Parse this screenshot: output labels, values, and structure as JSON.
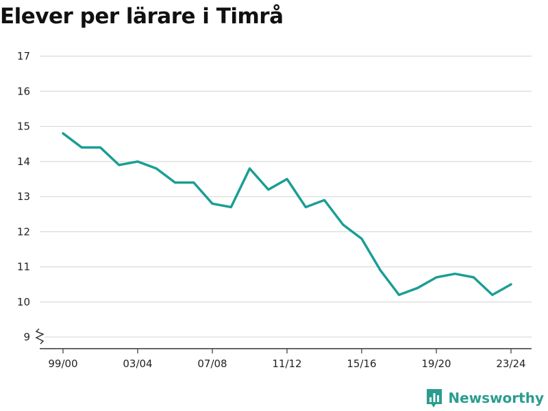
{
  "chart_data": {
    "type": "line",
    "title": "Elever per lärare i Timrå",
    "xlabel": "",
    "ylabel": "",
    "x": [
      "99/00",
      "00/01",
      "01/02",
      "02/03",
      "03/04",
      "04/05",
      "05/06",
      "06/07",
      "07/08",
      "08/09",
      "09/10",
      "10/11",
      "11/12",
      "12/13",
      "13/14",
      "14/15",
      "15/16",
      "16/17",
      "17/18",
      "18/19",
      "19/20",
      "20/21",
      "21/22",
      "22/23",
      "23/24"
    ],
    "x_tick_labels": [
      "99/00",
      "03/04",
      "07/08",
      "11/12",
      "15/16",
      "19/20",
      "23/24"
    ],
    "series": [
      {
        "values": [
          14.8,
          14.4,
          14.4,
          13.9,
          14.0,
          13.8,
          13.4,
          13.4,
          12.8,
          12.7,
          13.8,
          13.2,
          13.5,
          12.7,
          12.9,
          12.2,
          11.8,
          10.9,
          10.2,
          10.4,
          10.7,
          10.8,
          10.7,
          10.2,
          10.5
        ]
      }
    ],
    "y_ticks": [
      9,
      10,
      11,
      12,
      13,
      14,
      15,
      16,
      17
    ],
    "ylim": [
      8.7,
      17
    ],
    "y_axis_break": true,
    "grid": true,
    "legend": "none",
    "colors": {
      "line": "#1a9e94",
      "grid": "#d9d9d9",
      "axis": "#333333"
    }
  },
  "branding": {
    "name": "Newsworthy",
    "logo_icon": "bar-chart-icon",
    "color": "#2a9d8f"
  }
}
